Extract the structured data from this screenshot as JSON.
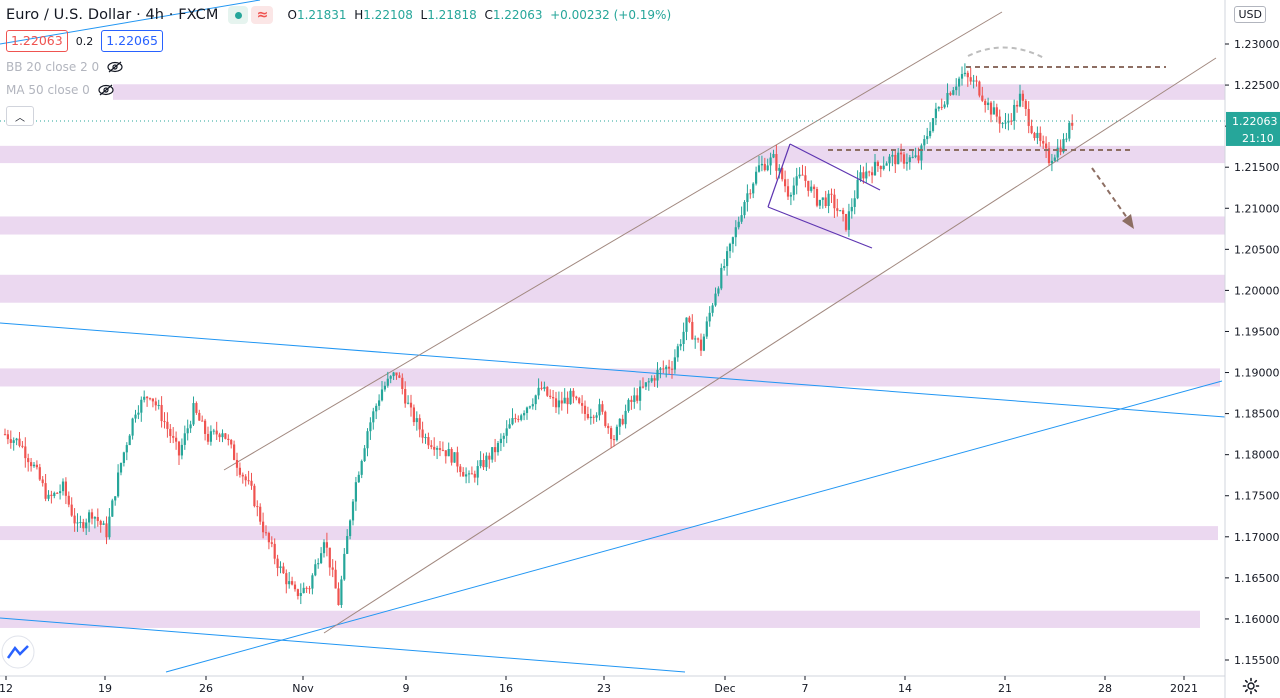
{
  "header": {
    "symbol": "Euro / U.S. Dollar · 4h · FXCM",
    "ohlc": {
      "open_label": "O",
      "open": "1.21831",
      "high_label": "H",
      "high": "1.22108",
      "low_label": "L",
      "low": "1.21818",
      "close_label": "C",
      "close": "1.22063",
      "change": "+0.00232 (+0.19%)"
    },
    "sell_price": "1.22063",
    "spread": "0.2",
    "buy_price": "1.22065",
    "indicators": [
      "BB 20 close 2 0",
      "MA 50 close 0"
    ],
    "currency": "USD",
    "icons": [
      "eye-off-icon",
      "chevron-up-icon",
      "gear-icon"
    ]
  },
  "colors": {
    "up": "#26a69a",
    "down": "#ef5350",
    "zone": "#ead6ef",
    "trendline": "#2196f3",
    "channel": "#a1887f",
    "flag": "#5e35b1",
    "level": "#8d6e63",
    "last_price_badge": "#26a69a"
  },
  "chart_data": {
    "type": "candlestick",
    "title": "Euro / U.S. Dollar · 4h · FXCM",
    "price_axis_labels": [
      "1.23000",
      "1.22500",
      "1.22000",
      "1.21500",
      "1.21000",
      "1.20500",
      "1.20000",
      "1.19500",
      "1.19000",
      "1.18500",
      "1.18000",
      "1.17500",
      "1.17000",
      "1.16500",
      "1.16000",
      "1.15500"
    ],
    "time_axis_labels": [
      "12",
      "19",
      "26",
      "Nov",
      "9",
      "16",
      "23",
      "Dec",
      "7",
      "14",
      "21",
      "28",
      "2021"
    ],
    "last_price": "1.22063",
    "countdown": "21:10",
    "zones": [
      {
        "from": 1.2232,
        "to": 1.2251
      },
      {
        "from": 1.2155,
        "to": 1.2176
      },
      {
        "from": 1.2068,
        "to": 1.209
      },
      {
        "from": 1.1985,
        "to": 1.2019
      },
      {
        "from": 1.1883,
        "to": 1.1905
      },
      {
        "from": 1.1696,
        "to": 1.1713
      },
      {
        "from": 1.1589,
        "to": 1.161
      }
    ],
    "candles_anchor_path": [
      [
        0,
        1.1825
      ],
      [
        5,
        1.1815
      ],
      [
        10,
        1.1785
      ],
      [
        15,
        1.1745
      ],
      [
        20,
        1.176
      ],
      [
        25,
        1.171
      ],
      [
        30,
        1.173
      ],
      [
        35,
        1.1705
      ],
      [
        40,
        1.179
      ],
      [
        45,
        1.1855
      ],
      [
        50,
        1.1875
      ],
      [
        55,
        1.184
      ],
      [
        60,
        1.18
      ],
      [
        65,
        1.1855
      ],
      [
        70,
        1.182
      ],
      [
        75,
        1.183
      ],
      [
        80,
        1.179
      ],
      [
        85,
        1.1755
      ],
      [
        90,
        1.17
      ],
      [
        95,
        1.166
      ],
      [
        100,
        1.163
      ],
      [
        105,
        1.164
      ],
      [
        110,
        1.17
      ],
      [
        115,
        1.162
      ],
      [
        120,
        1.175
      ],
      [
        125,
        1.183
      ],
      [
        130,
        1.188
      ],
      [
        135,
        1.19
      ],
      [
        140,
        1.185
      ],
      [
        145,
        1.182
      ],
      [
        150,
        1.181
      ],
      [
        155,
        1.1795
      ],
      [
        160,
        1.177
      ],
      [
        165,
        1.179
      ],
      [
        170,
        1.181
      ],
      [
        175,
        1.184
      ],
      [
        180,
        1.186
      ],
      [
        185,
        1.188
      ],
      [
        190,
        1.186
      ],
      [
        195,
        1.187
      ],
      [
        200,
        1.185
      ],
      [
        205,
        1.1855
      ],
      [
        210,
        1.182
      ],
      [
        215,
        1.186
      ],
      [
        220,
        1.188
      ],
      [
        225,
        1.19
      ],
      [
        230,
        1.191
      ],
      [
        235,
        1.196
      ],
      [
        240,
        1.193
      ],
      [
        245,
        1.2
      ],
      [
        250,
        1.205
      ],
      [
        255,
        1.211
      ],
      [
        260,
        1.215
      ],
      [
        265,
        1.216
      ],
      [
        270,
        1.212
      ],
      [
        275,
        1.214
      ],
      [
        280,
        1.211
      ],
      [
        285,
        1.211
      ],
      [
        290,
        1.208
      ],
      [
        295,
        1.214
      ],
      [
        300,
        1.215
      ],
      [
        305,
        1.216
      ],
      [
        310,
        1.216
      ],
      [
        315,
        1.216
      ],
      [
        320,
        1.221
      ],
      [
        325,
        1.224
      ],
      [
        330,
        1.2262
      ],
      [
        335,
        1.225
      ],
      [
        340,
        1.222
      ],
      [
        345,
        1.22
      ],
      [
        350,
        1.2235
      ],
      [
        355,
        1.219
      ],
      [
        360,
        1.216
      ],
      [
        365,
        1.218
      ],
      [
        368,
        1.2206
      ]
    ]
  }
}
